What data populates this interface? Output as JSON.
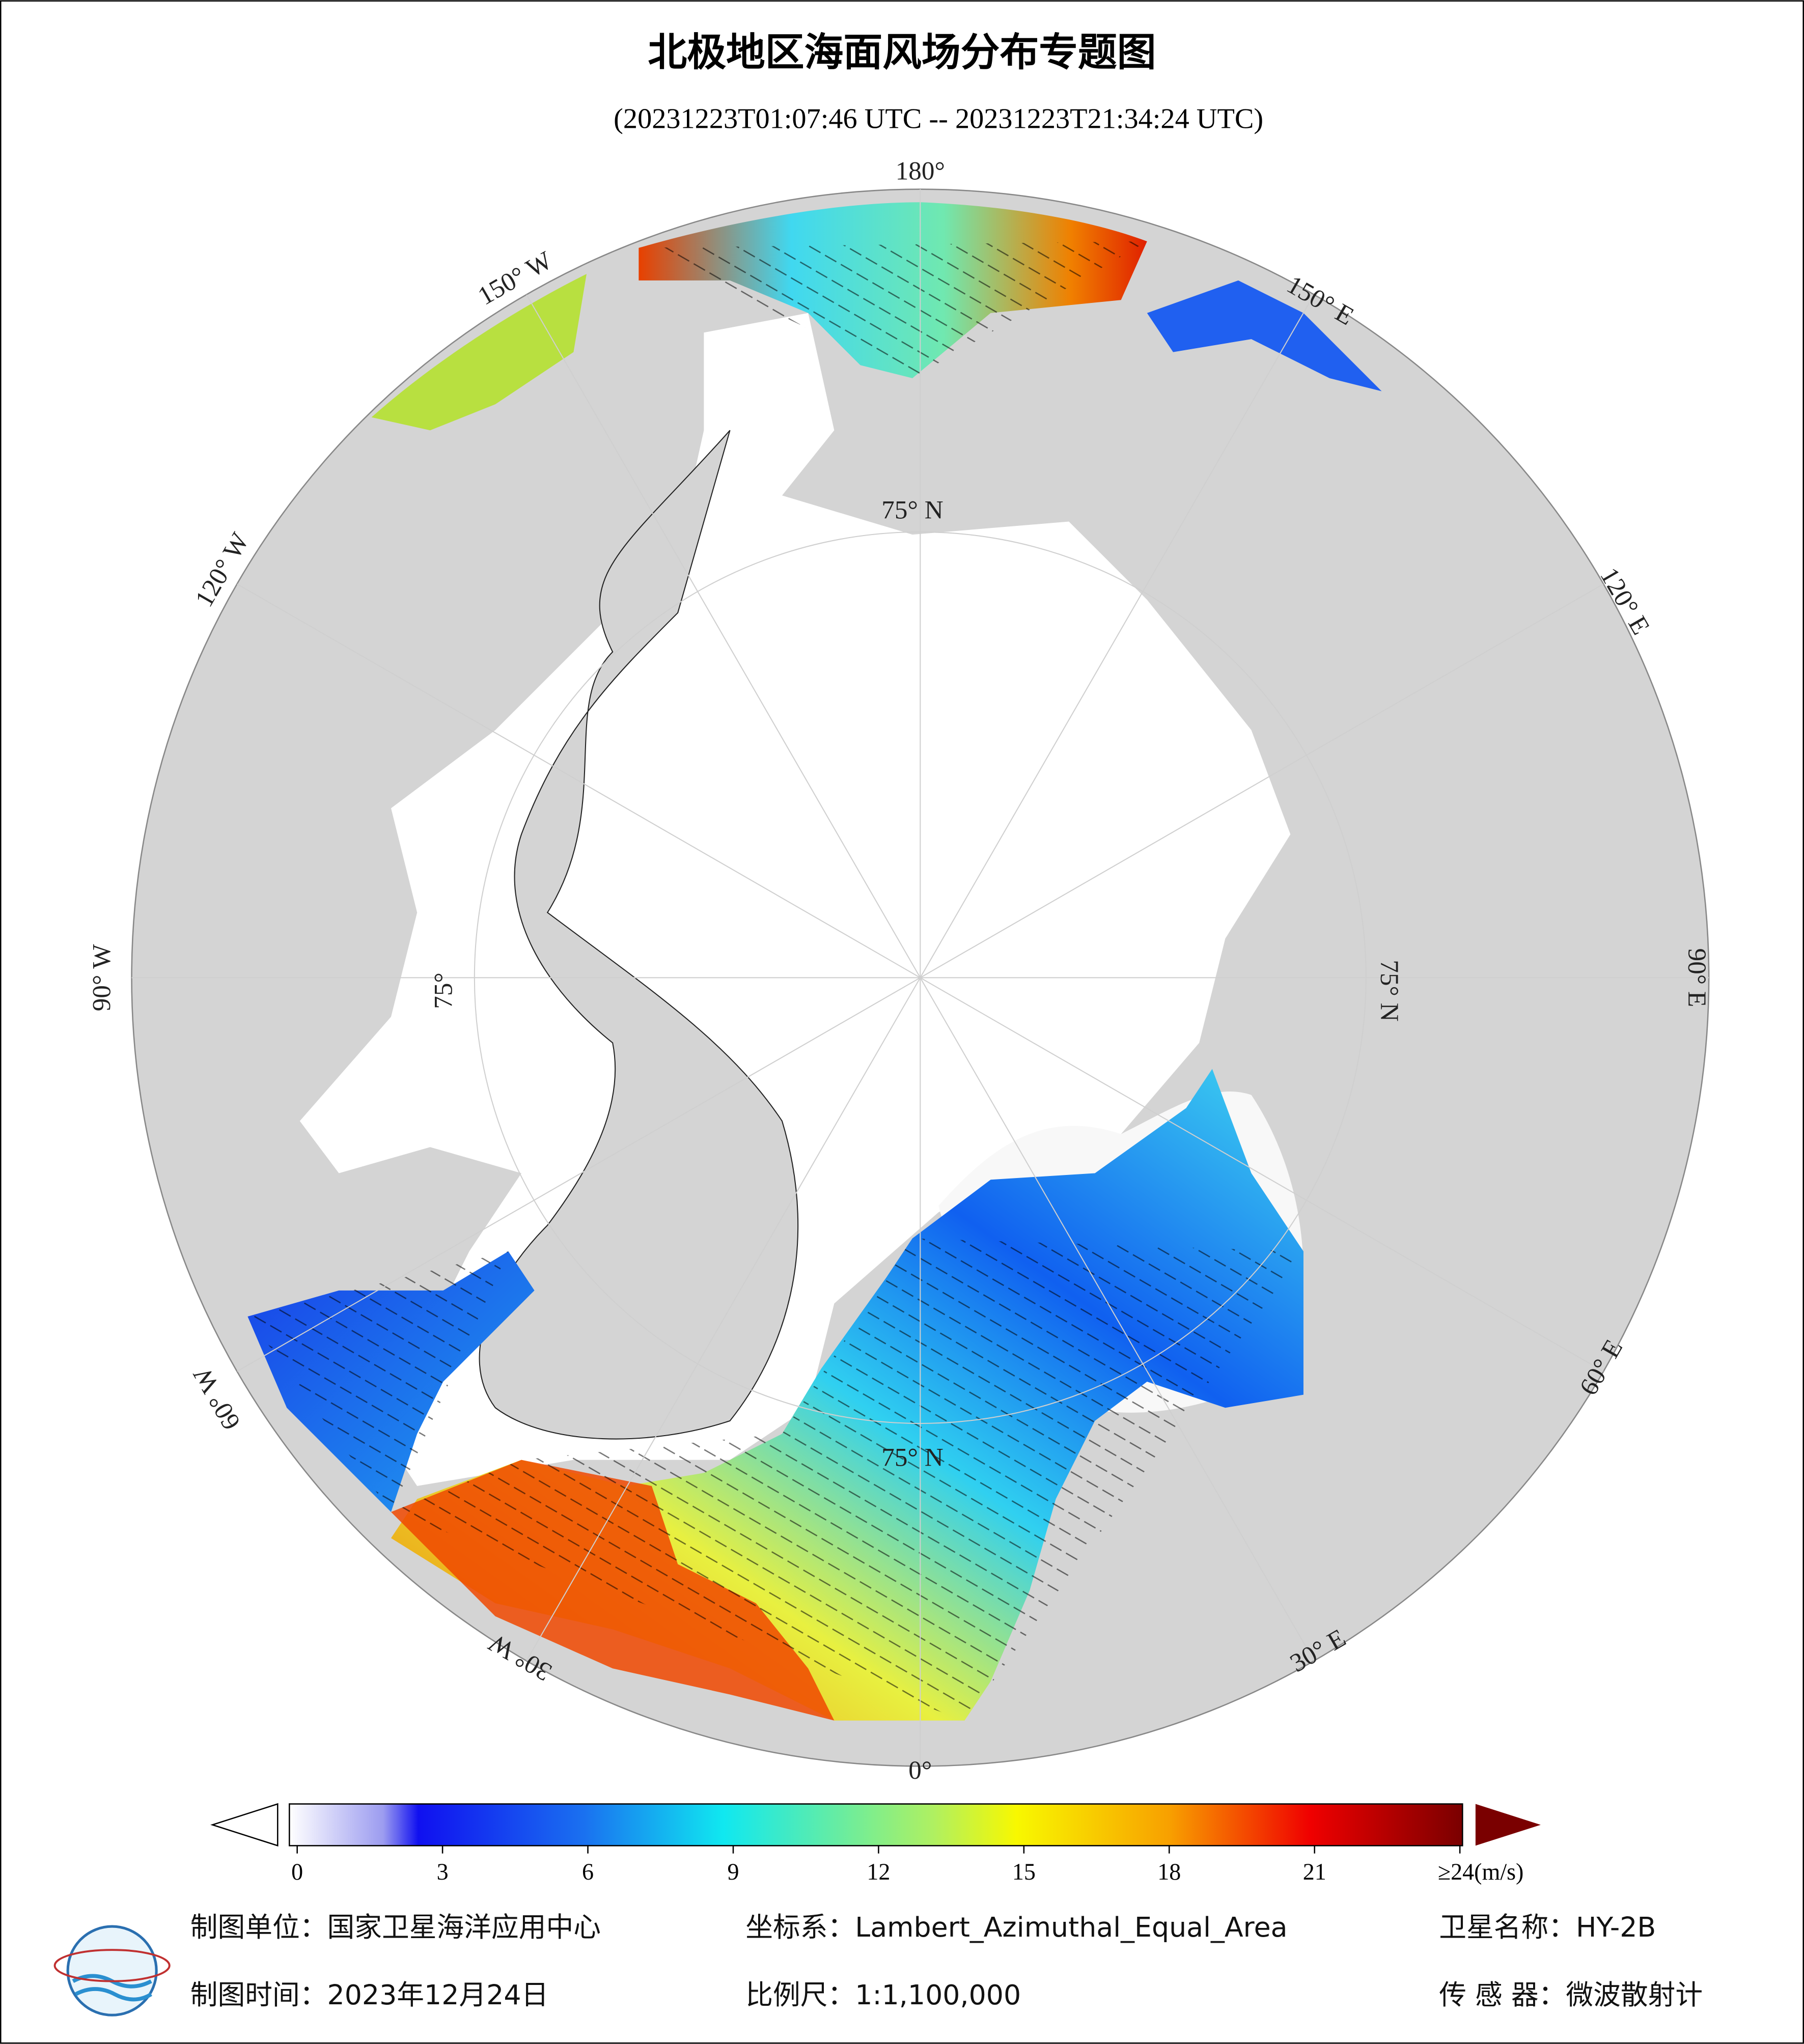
{
  "title": "北极地区海面风场分布专题图",
  "subtitle": "(20231223T01:07:46 UTC -- 20231223T21:34:24 UTC)",
  "map": {
    "longitude_labels": [
      "180°",
      "150° E",
      "120° E",
      "90° E",
      "60° E",
      "30° E",
      "0°",
      "30° W",
      "60° W",
      "90° W",
      "120° W",
      "150° W"
    ],
    "latitude_labels": [
      "75° N",
      "75° N",
      "75° N",
      "75°"
    ]
  },
  "colorbar": {
    "ticks": [
      0,
      3,
      6,
      9,
      12,
      15,
      18,
      21,
      {
        "value": 24,
        "label": "≥24(m/s)"
      }
    ]
  },
  "footer": {
    "unit": "制图单位：国家卫星海洋应用中心",
    "crs": "坐标系：Lambert_Azimuthal_Equal_Area",
    "satellite": "卫星名称：HY-2B",
    "date": "制图时间：2023年12月24日",
    "scale": "比例尺：1:1,100,000",
    "sensor": "传 感 器：微波散射计"
  }
}
